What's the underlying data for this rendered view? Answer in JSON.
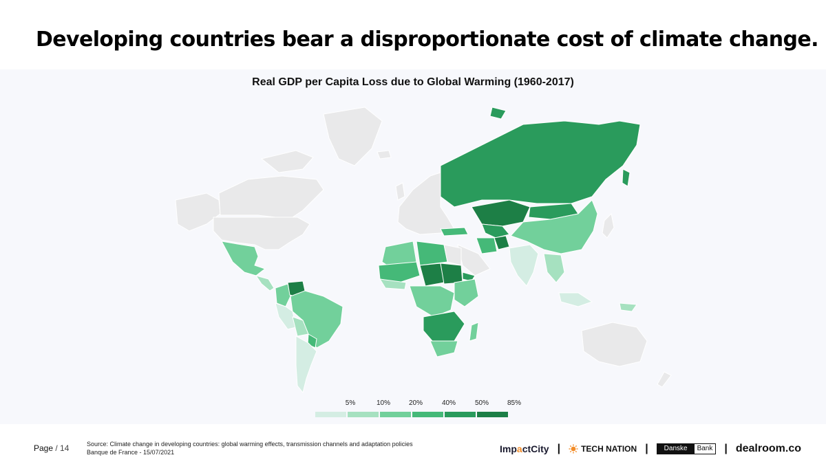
{
  "headline": "Developing countries bear a disproportionate cost of climate change.",
  "map": {
    "title": "Real GDP per Capita Loss due to Global Warming (1960-2017)",
    "colors": {
      "nodata": "#e9e9ea",
      "c5": "#d4ede3",
      "c10": "#a6e1c0",
      "c20": "#72d09b",
      "c40": "#45b978",
      "c50": "#2a9b5c",
      "c85": "#1d7f46"
    }
  },
  "legend": {
    "labels": [
      "5%",
      "10%",
      "20%",
      "40%",
      "50%",
      "85%"
    ],
    "colors": [
      "#d4ede3",
      "#a6e1c0",
      "#72d09b",
      "#45b978",
      "#2a9b5c",
      "#1d7f46"
    ]
  },
  "footer": {
    "page_label": "Page",
    "page_number": "/ 14",
    "source_line1": "Source: Climate change in developing countries: global warming effects, transmission channels and adaptation policies",
    "source_line2": "Banque de France - 15/07/2021"
  },
  "logos": {
    "impact_a": "Imp",
    "impact_b": "a",
    "impact_c": "ctCity",
    "tech": "TECH NATION",
    "danske_1": "Danske",
    "danske_2": "Bank",
    "dealroom": "dealroom.co",
    "sep": "|"
  }
}
